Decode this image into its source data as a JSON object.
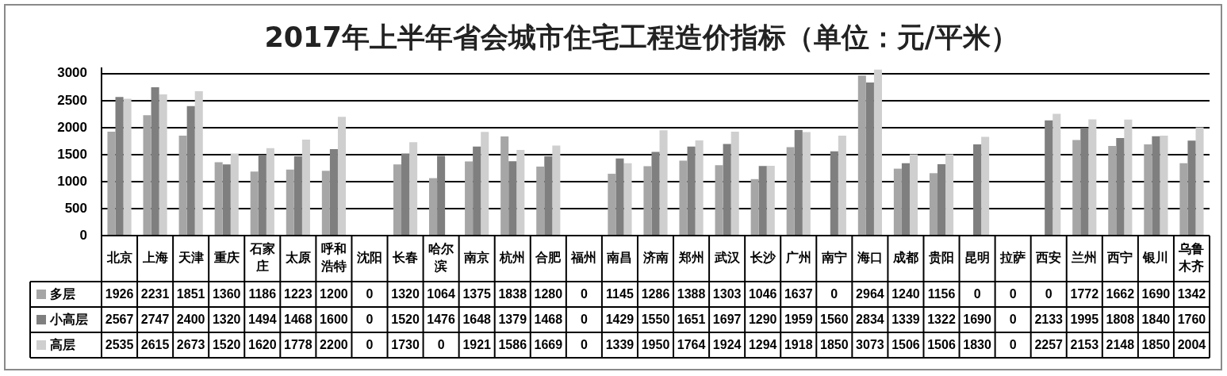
{
  "chart_data": {
    "type": "bar",
    "title": "2017年上半年省会城市住宅工程造价指标（单位：元/平米）",
    "categories": [
      "北京",
      "上海",
      "天津",
      "重庆",
      "石家庄",
      "太原",
      "呼和浩特",
      "沈阳",
      "长春",
      "哈尔滨",
      "南京",
      "杭州",
      "合肥",
      "福州",
      "南昌",
      "济南",
      "郑州",
      "武汉",
      "长沙",
      "广州",
      "南宁",
      "海口",
      "成都",
      "贵阳",
      "昆明",
      "拉萨",
      "西安",
      "兰州",
      "西宁",
      "银川",
      "乌鲁木齐"
    ],
    "series": [
      {
        "name": "多层",
        "color": "#a6a6a6",
        "values": [
          1926,
          2231,
          1851,
          1360,
          1186,
          1223,
          1200,
          0,
          1320,
          1064,
          1375,
          1838,
          1280,
          0,
          1145,
          1286,
          1388,
          1303,
          1046,
          1637,
          0,
          2964,
          1240,
          1156,
          0,
          0,
          0,
          1772,
          1662,
          1690,
          1342
        ]
      },
      {
        "name": "小高层",
        "color": "#7f7f7f",
        "values": [
          2567,
          2747,
          2400,
          1320,
          1494,
          1468,
          1600,
          0,
          1520,
          1476,
          1648,
          1379,
          1468,
          0,
          1429,
          1550,
          1651,
          1697,
          1290,
          1959,
          1560,
          2834,
          1339,
          1322,
          1690,
          0,
          2133,
          1995,
          1808,
          1840,
          1760
        ]
      },
      {
        "name": "高层",
        "color": "#cfcfcf",
        "values": [
          2535,
          2615,
          2673,
          1520,
          1620,
          1778,
          2200,
          0,
          1730,
          0,
          1921,
          1586,
          1669,
          0,
          1339,
          1950,
          1764,
          1924,
          1294,
          1918,
          1850,
          3073,
          1506,
          1506,
          1830,
          0,
          2257,
          2153,
          2148,
          1850,
          2004
        ]
      }
    ],
    "ylim": [
      0,
      3100
    ],
    "yticks": [
      0,
      500,
      1000,
      1500,
      2000,
      2500,
      3000
    ],
    "grid": "y",
    "legend": "bottom left",
    "data_labels": true
  }
}
